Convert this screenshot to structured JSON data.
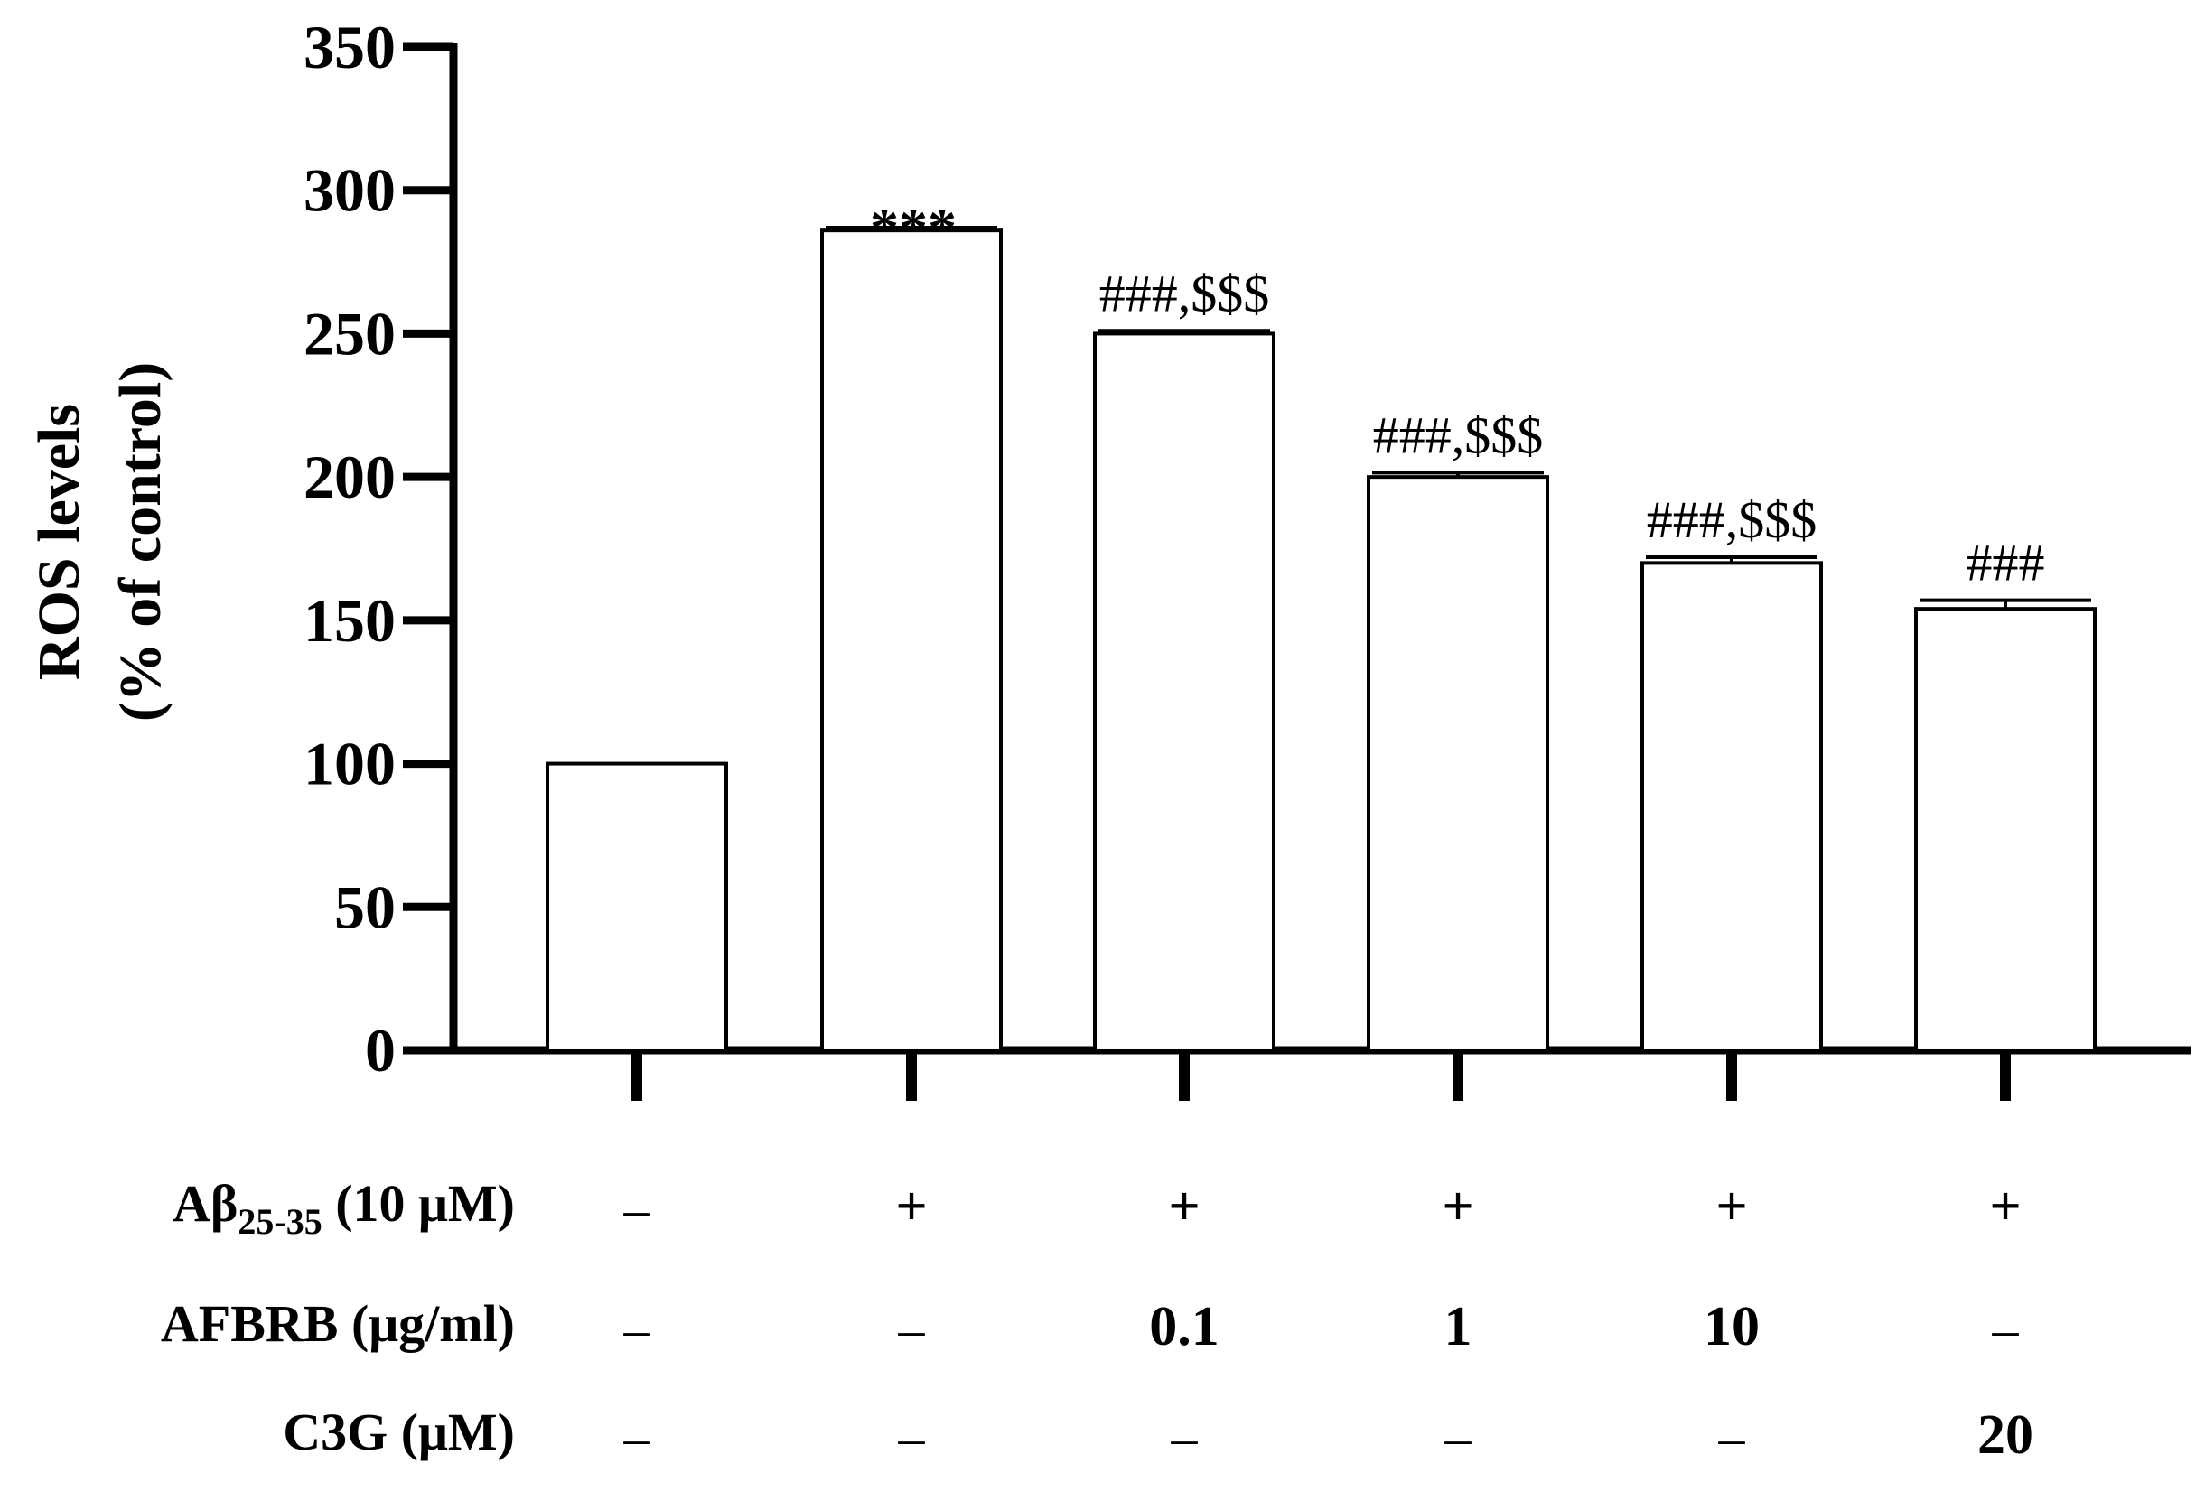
{
  "chart_data": {
    "type": "bar",
    "ylabel_line1": "ROS levels",
    "ylabel_line2": "(% of control)",
    "ylim": [
      0,
      350
    ],
    "yticks": [
      "0",
      "50",
      "100",
      "150",
      "200",
      "250",
      "300",
      "350"
    ],
    "ytick_values": [
      0,
      50,
      100,
      150,
      200,
      250,
      300,
      350
    ],
    "values": [
      100,
      286,
      250,
      200,
      170,
      154
    ],
    "errors": [
      0,
      1,
      1,
      1.5,
      2,
      3
    ],
    "annotations": [
      "",
      "***",
      "###,$$$",
      "###,$$$",
      "###,$$$",
      "###"
    ],
    "bar_fill": "#ffffff",
    "bar_stroke": "#000000",
    "conditions": [
      {
        "label_main": "Aβ",
        "label_sub": "25-35",
        "label_rest": " (10 μM)",
        "values": [
          "–",
          "+",
          "+",
          "+",
          "+",
          "+"
        ]
      },
      {
        "label_main": "AFBRB (μg/ml)",
        "label_sub": "",
        "label_rest": "",
        "values": [
          "–",
          "–",
          "0.1",
          "1",
          "10",
          "–"
        ]
      },
      {
        "label_main": "C3G (μM)",
        "label_sub": "",
        "label_rest": "",
        "values": [
          "–",
          "–",
          "–",
          "–",
          "–",
          "20"
        ]
      }
    ]
  }
}
